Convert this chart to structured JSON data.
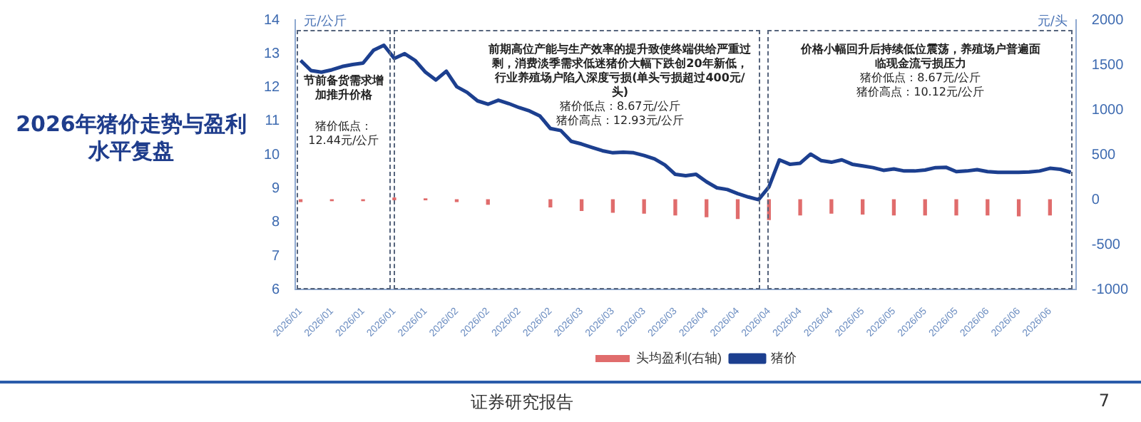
{
  "chart_data": {
    "type": "line",
    "title": "2026年猪价走势与盈利水平复盘",
    "ylabel": "元/公斤",
    "y2label": "元/头",
    "categories": [
      "2026/01",
      null,
      null,
      "2026/01",
      null,
      null,
      "2026/01",
      null,
      null,
      "2026/01",
      null,
      null,
      "2026/01",
      null,
      null,
      "2026/02",
      null,
      null,
      "2026/02",
      null,
      null,
      "2026/02",
      null,
      null,
      "2026/02",
      null,
      null,
      "2026/03",
      null,
      null,
      "2026/03",
      null,
      null,
      "2026/03",
      null,
      null,
      "2026/03",
      null,
      null,
      "2026/04",
      null,
      null,
      "2026/04",
      null,
      null,
      "2026/04",
      null,
      null,
      "2026/04",
      null,
      null,
      "2026/04",
      null,
      null,
      "2026/05",
      null,
      null,
      "2026/05",
      null,
      null,
      "2026/05",
      null,
      null,
      "2026/05",
      null,
      null,
      "2026/06",
      null,
      null,
      "2026/06",
      null,
      null,
      "2026/06",
      null,
      null
    ],
    "series": [
      {
        "name": "头均盈利(右轴)",
        "type": "bar",
        "axis": "y2",
        "color": "#e06c6c",
        "values": [
          -20,
          null,
          null,
          -10,
          null,
          null,
          -10,
          null,
          null,
          20,
          null,
          null,
          10,
          null,
          null,
          -20,
          null,
          null,
          -50,
          null,
          null,
          null,
          null,
          null,
          -80,
          null,
          null,
          -120,
          null,
          null,
          -140,
          null,
          null,
          -150,
          null,
          null,
          -170,
          null,
          null,
          -190,
          null,
          null,
          -210,
          null,
          null,
          -220,
          null,
          null,
          -170,
          null,
          null,
          -150,
          null,
          null,
          -160,
          null,
          null,
          -170,
          null,
          null,
          -170,
          null,
          null,
          -170,
          null,
          null,
          -170,
          null,
          null,
          -180,
          null,
          null,
          -170,
          null,
          null
        ]
      },
      {
        "name": "猪价",
        "type": "line",
        "color": "#1c3f8f",
        "values": [
          12.8,
          12.5,
          12.45,
          12.52,
          12.62,
          12.68,
          12.72,
          13.1,
          13.25,
          12.86,
          13.0,
          12.8,
          12.45,
          12.22,
          12.48,
          12.02,
          11.85,
          11.6,
          11.5,
          11.62,
          11.52,
          11.4,
          11.3,
          11.15,
          10.78,
          10.72,
          10.4,
          10.32,
          10.22,
          10.12,
          10.06,
          10.08,
          10.06,
          9.98,
          9.88,
          9.7,
          9.42,
          9.38,
          9.42,
          9.2,
          9.02,
          8.97,
          8.85,
          8.75,
          8.67,
          9.05,
          9.85,
          9.72,
          9.75,
          10.02,
          9.83,
          9.78,
          9.85,
          9.72,
          9.67,
          9.62,
          9.54,
          9.58,
          9.52,
          9.52,
          9.55,
          9.62,
          9.63,
          9.5,
          9.52,
          9.56,
          9.5,
          9.48,
          9.48,
          9.48,
          9.49,
          9.52,
          9.6,
          9.57,
          9.48
        ]
      }
    ],
    "ylim": [
      6,
      14
    ],
    "yticks": [
      6,
      7,
      8,
      9,
      10,
      11,
      12,
      13,
      14
    ],
    "y2lim": [
      -1000,
      2000
    ],
    "y2ticks": [
      -1000,
      -500,
      0,
      500,
      1000,
      1500,
      2000
    ],
    "legend": "bottom",
    "annotations": [
      "节前备货需求增加推升价格",
      "猪价低点：12.44元/公斤",
      "前期高位产能与生产效率的提升致使终端供给严重过剩，消费淡季需求低迷猪价大幅下跌创20年新低，行业养殖场户陷入深度亏损(单头亏损超过400元/头)",
      "猪价低点：8.67元/公斤",
      "猪价高点：12.93元/公斤",
      "价格小幅回升后持续低位震荡，养殖场户普遍面临现金流亏损压力",
      "猪价低点：8.67元/公斤",
      "猪价高点：10.12元/公斤",
      "证券研究报告",
      "7"
    ]
  }
}
